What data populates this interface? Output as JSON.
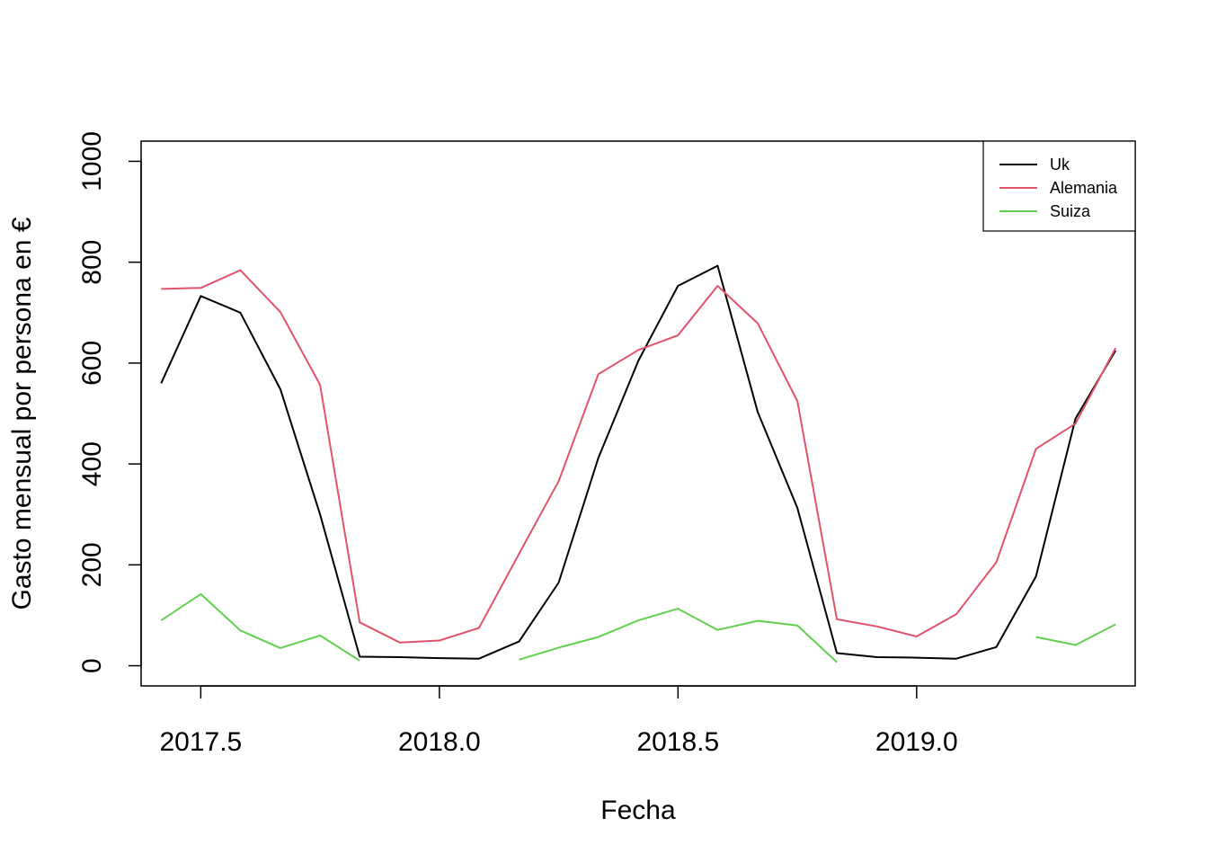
{
  "chart_data": {
    "type": "line",
    "title": "",
    "xlabel": "Fecha",
    "ylabel": "Gasto mensual por persona en €",
    "xlim": [
      2017.375,
      2019.458
    ],
    "ylim": [
      -40,
      1040
    ],
    "xticks": [
      2017.5,
      2018.0,
      2018.5,
      2019.0
    ],
    "xtick_labels": [
      "2017.5",
      "2018.0",
      "2018.5",
      "2019.0"
    ],
    "yticks": [
      0,
      200,
      400,
      600,
      800,
      1000
    ],
    "ytick_labels": [
      "0",
      "200",
      "400",
      "600",
      "800",
      "1000"
    ],
    "grid": false,
    "legend_position": "top-right",
    "x": [
      2017.417,
      2017.5,
      2017.583,
      2017.667,
      2017.75,
      2017.833,
      2017.917,
      2018.0,
      2018.083,
      2018.167,
      2018.25,
      2018.333,
      2018.417,
      2018.5,
      2018.583,
      2018.667,
      2018.75,
      2018.833,
      2018.917,
      2019.0,
      2019.083,
      2019.167,
      2019.25,
      2019.333,
      2019.417
    ],
    "series": [
      {
        "name": "Uk",
        "color": "#000000",
        "values": [
          560,
          733,
          700,
          548,
          300,
          18,
          17,
          15,
          14,
          48,
          165,
          412,
          605,
          753,
          793,
          503,
          313,
          25,
          17,
          16,
          14,
          37,
          177,
          490,
          625
        ]
      },
      {
        "name": "Alemania",
        "color": "#DF536B",
        "values": [
          747,
          749,
          784,
          701,
          557,
          86,
          46,
          50,
          75,
          222,
          366,
          578,
          626,
          655,
          753,
          679,
          525,
          92,
          78,
          58,
          102,
          205,
          430,
          480,
          630
        ]
      },
      {
        "name": "Suiza",
        "color": "#61D04F",
        "values": [
          90,
          142,
          70,
          35,
          60,
          10,
          null,
          null,
          null,
          12,
          36,
          57,
          90,
          113,
          71,
          89,
          80,
          7,
          null,
          null,
          null,
          null,
          57,
          41,
          82
        ]
      }
    ]
  }
}
